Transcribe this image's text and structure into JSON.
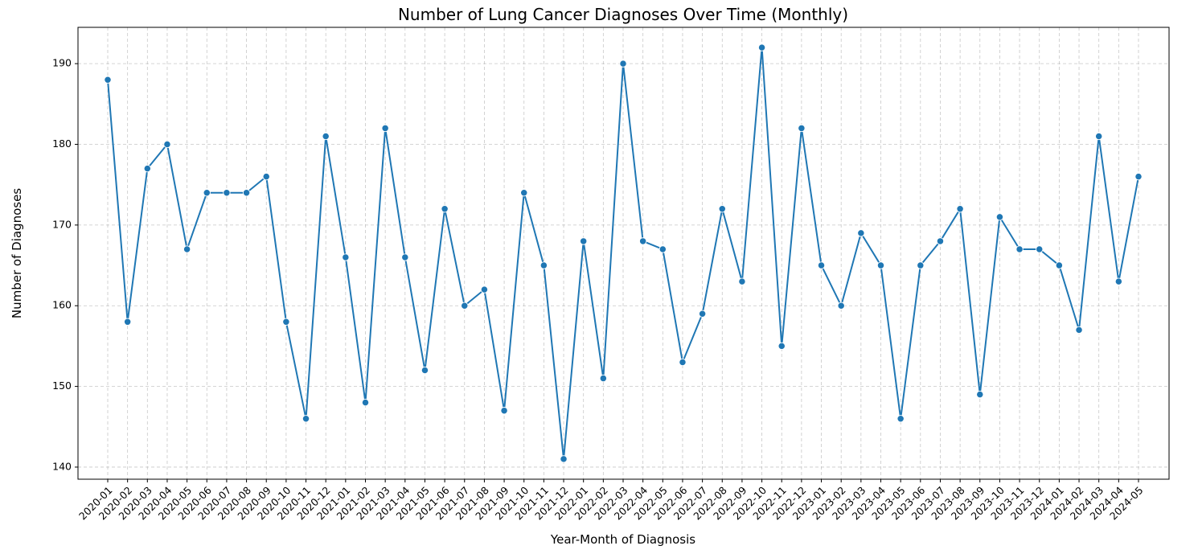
{
  "chart_data": {
    "type": "line",
    "title": "Number of Lung Cancer Diagnoses Over Time (Monthly)",
    "xlabel": "Year-Month of Diagnosis",
    "ylabel": "Number of Diagnoses",
    "ylim": [
      138.5,
      194.5
    ],
    "yticks": [
      140,
      150,
      160,
      170,
      180,
      190
    ],
    "grid": true,
    "line_color": "#1f77b4",
    "categories": [
      "2020-01",
      "2020-02",
      "2020-03",
      "2020-04",
      "2020-05",
      "2020-06",
      "2020-07",
      "2020-08",
      "2020-09",
      "2020-10",
      "2020-11",
      "2020-12",
      "2021-01",
      "2021-02",
      "2021-03",
      "2021-04",
      "2021-05",
      "2021-06",
      "2021-07",
      "2021-08",
      "2021-09",
      "2021-10",
      "2021-11",
      "2021-12",
      "2022-01",
      "2022-02",
      "2022-03",
      "2022-04",
      "2022-05",
      "2022-06",
      "2022-07",
      "2022-08",
      "2022-09",
      "2022-10",
      "2022-11",
      "2022-12",
      "2023-01",
      "2023-02",
      "2023-03",
      "2023-04",
      "2023-05",
      "2023-06",
      "2023-07",
      "2023-08",
      "2023-09",
      "2023-10",
      "2023-11",
      "2023-12",
      "2024-01",
      "2024-02",
      "2024-03",
      "2024-04",
      "2024-05"
    ],
    "values": [
      188,
      158,
      177,
      180,
      167,
      174,
      174,
      174,
      176,
      158,
      146,
      181,
      166,
      148,
      182,
      166,
      152,
      172,
      160,
      162,
      147,
      174,
      165,
      141,
      168,
      151,
      190,
      168,
      167,
      153,
      159,
      172,
      163,
      192,
      155,
      182,
      165,
      160,
      169,
      165,
      146,
      165,
      168,
      172,
      149,
      171,
      167,
      167,
      165,
      157,
      181,
      163,
      176
    ]
  }
}
